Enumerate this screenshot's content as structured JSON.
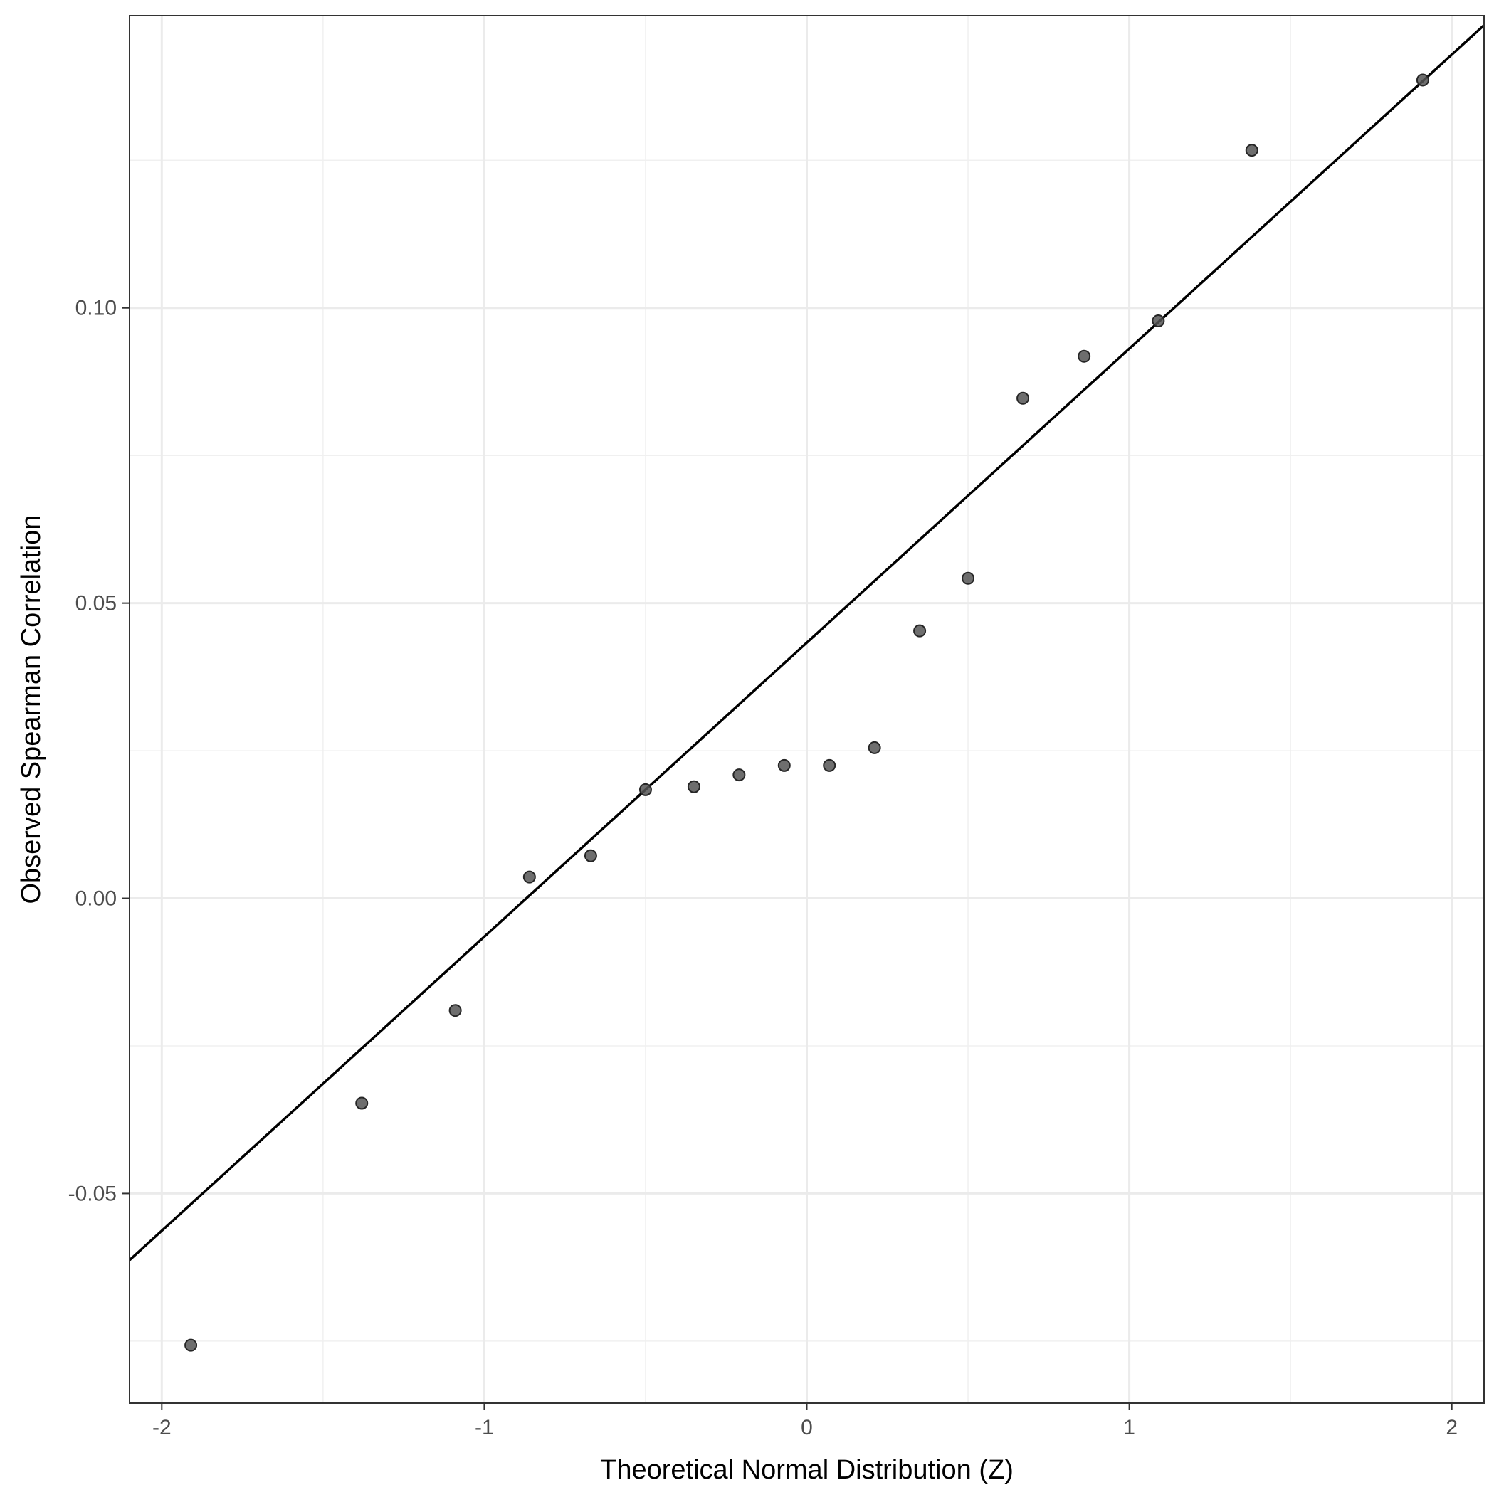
{
  "chart_data": {
    "type": "scatter",
    "title": "",
    "xlabel": "Theoretical Normal Distribution (Z)",
    "ylabel": "Observed Spearman Correlation",
    "xlim": [
      -2.1,
      2.1
    ],
    "ylim": [
      -0.0855,
      0.1495
    ],
    "x_ticks": [
      -2,
      -1,
      0,
      1,
      2
    ],
    "x_tick_labels": [
      "-2",
      "-1",
      "0",
      "1",
      "2"
    ],
    "y_ticks": [
      -0.05,
      0.0,
      0.05,
      0.1
    ],
    "y_tick_labels": [
      "-0.05",
      "0.00",
      "0.05",
      "0.10"
    ],
    "grid": true,
    "theme": "black-and-white",
    "series": [
      {
        "points": [
          {
            "x": -1.91,
            "y": -0.0757
          },
          {
            "x": -1.38,
            "y": -0.0347
          },
          {
            "x": -1.09,
            "y": -0.019
          },
          {
            "x": -0.86,
            "y": 0.0036
          },
          {
            "x": -0.67,
            "y": 0.0072
          },
          {
            "x": -0.5,
            "y": 0.0184
          },
          {
            "x": -0.35,
            "y": 0.0189
          },
          {
            "x": -0.21,
            "y": 0.0209
          },
          {
            "x": -0.07,
            "y": 0.0225
          },
          {
            "x": 0.07,
            "y": 0.0225
          },
          {
            "x": 0.21,
            "y": 0.0255
          },
          {
            "x": 0.35,
            "y": 0.0453
          },
          {
            "x": 0.5,
            "y": 0.0542
          },
          {
            "x": 0.67,
            "y": 0.0847
          },
          {
            "x": 0.86,
            "y": 0.0918
          },
          {
            "x": 1.09,
            "y": 0.0978
          },
          {
            "x": 1.38,
            "y": 0.1267
          },
          {
            "x": 1.91,
            "y": 0.1386
          }
        ],
        "marker_color": "#555555",
        "marker_stroke": "#262626"
      }
    ],
    "reference_line": {
      "type": "qq-line",
      "color": "#000000",
      "intercept": 0.0433,
      "slope": 0.0498
    }
  }
}
